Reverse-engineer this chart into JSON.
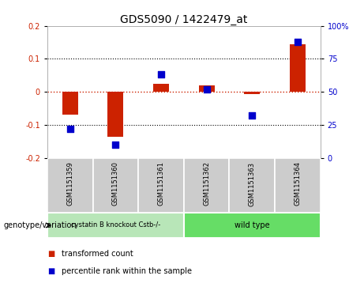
{
  "title": "GDS5090 / 1422479_at",
  "samples": [
    "GSM1151359",
    "GSM1151360",
    "GSM1151361",
    "GSM1151362",
    "GSM1151363",
    "GSM1151364"
  ],
  "red_values": [
    -0.068,
    -0.135,
    0.025,
    0.02,
    -0.008,
    0.145
  ],
  "blue_values": [
    22,
    10,
    63,
    52,
    32,
    88
  ],
  "ylim_left": [
    -0.2,
    0.2
  ],
  "ylim_right": [
    0,
    100
  ],
  "yticks_left": [
    -0.2,
    -0.1,
    0.0,
    0.1,
    0.2
  ],
  "yticks_right": [
    0,
    25,
    50,
    75,
    100
  ],
  "group_labels": [
    "cystatin B knockout Cstb-/-",
    "wild type"
  ],
  "group_color1": "#b8e6b8",
  "group_color2": "#66dd66",
  "sample_box_color": "#cccccc",
  "bar_color": "#CC2200",
  "dot_color": "#0000CC",
  "zero_line_color": "#CC2200",
  "plot_bg": "white",
  "genotype_label": "genotype/variation",
  "legend_red": "transformed count",
  "legend_blue": "percentile rank within the sample",
  "bar_width": 0.35,
  "dot_size": 30,
  "title_fontsize": 10,
  "tick_fontsize": 7,
  "label_fontsize": 7,
  "sample_fontsize": 6
}
